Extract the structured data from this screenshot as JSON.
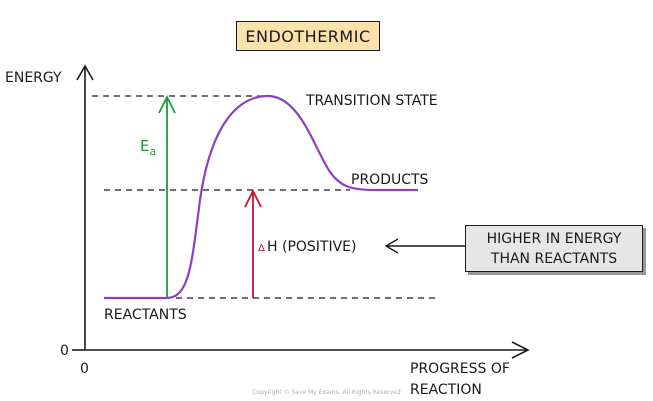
{
  "title": "ENDOTHERMIC",
  "axes": {
    "y_label": "ENERGY",
    "x_label_line1": "PROGRESS OF",
    "x_label_line2": "REACTION",
    "origin_y": "0",
    "origin_x": "0"
  },
  "labels": {
    "transition_state": "TRANSITION STATE",
    "products": "PRODUCTS",
    "reactants": "REACTANTS",
    "ea_main": "E",
    "ea_sub": "a",
    "dh_delta": "Δ",
    "dh_text": "H (POSITIVE)"
  },
  "callout": {
    "line1": "HIGHER IN ENERGY",
    "line2": "THAN REACTANTS"
  },
  "copyright": "Copyright © Save My Exams. All Rights Reserved",
  "colors": {
    "curve": "#8d3fbf",
    "activation_arrow": "#1f9a3a",
    "enthalpy_arrow": "#c4132a",
    "ink": "#1a1a1a",
    "title_box": "#fbe1ab",
    "callout_box": "#e6e6e6"
  }
}
